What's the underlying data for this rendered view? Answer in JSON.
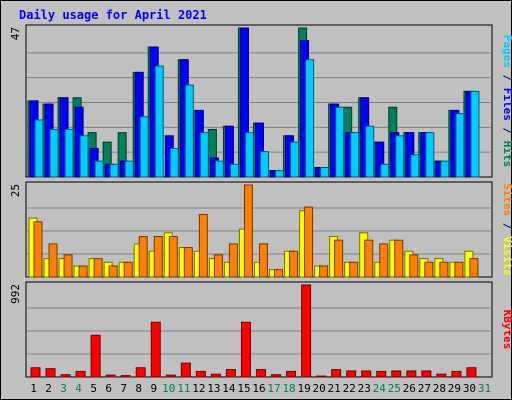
{
  "chart_data": {
    "type": "bar",
    "title": "Daily usage for April 2021",
    "categories": [
      "1",
      "2",
      "3",
      "4",
      "5",
      "6",
      "7",
      "8",
      "9",
      "10",
      "11",
      "12",
      "13",
      "14",
      "15",
      "16",
      "17",
      "18",
      "19",
      "20",
      "21",
      "22",
      "23",
      "24",
      "25",
      "26",
      "27",
      "28",
      "29",
      "30",
      "31"
    ],
    "weekend_days": [
      3,
      4,
      10,
      11,
      17,
      18,
      24,
      25,
      31
    ],
    "panels": [
      {
        "name": "top",
        "ymax_label": "47",
        "ylim": [
          0,
          47
        ],
        "side_labels": [
          {
            "text": "Pages",
            "color": "#00ccff"
          },
          {
            "text": " / ",
            "color": "#000080"
          },
          {
            "text": "Files",
            "color": "#0000ff"
          },
          {
            "text": " / ",
            "color": "#000080"
          },
          {
            "text": "Hits",
            "color": "#00805c"
          }
        ],
        "series": [
          {
            "name": "Hits",
            "color": "#00805c",
            "values": [
              24,
              23,
              25,
              25,
              14,
              11,
              14,
              33,
              41,
              0,
              37,
              21,
              15,
              16,
              47,
              17,
              2,
              13,
              47,
              3,
              23,
              22,
              25,
              11,
              22,
              14,
              14,
              5,
              21,
              27,
              0
            ]
          },
          {
            "name": "Files",
            "color": "#0000ff",
            "values": [
              24,
              23,
              25,
              22,
              9,
              4,
              5,
              33,
              41,
              13,
              37,
              21,
              6,
              16,
              47,
              17,
              2,
              13,
              43,
              3,
              23,
              14,
              25,
              11,
              14,
              14,
              14,
              5,
              21,
              27,
              0
            ]
          },
          {
            "name": "Pages",
            "color": "#00ccff",
            "values": [
              18,
              15,
              15,
              13,
              5,
              4,
              5,
              19,
              35,
              9,
              29,
              14,
              5,
              4,
              14,
              8,
              2,
              11,
              37,
              3,
              22,
              14,
              16,
              4,
              13,
              7,
              14,
              5,
              20,
              27,
              0
            ]
          }
        ]
      },
      {
        "name": "middle",
        "ymax_label": "25",
        "ylim": [
          0,
          25
        ],
        "side_labels": [
          {
            "text": "Sites",
            "color": "#ff8000"
          },
          {
            "text": " / ",
            "color": "#000080"
          },
          {
            "text": "Visits",
            "color": "#ffff00"
          }
        ],
        "series": [
          {
            "name": "Visits",
            "color": "#ffff00",
            "values": [
              16,
              5,
              5,
              3,
              5,
              4,
              4,
              9,
              7,
              12,
              8,
              7,
              5,
              4,
              13,
              4,
              2,
              7,
              18,
              3,
              11,
              4,
              12,
              4,
              10,
              7,
              5,
              5,
              4,
              7,
              0
            ]
          },
          {
            "name": "Sites",
            "color": "#ff8000",
            "values": [
              15,
              9,
              6,
              3,
              5,
              3,
              4,
              11,
              11,
              11,
              8,
              17,
              6,
              9,
              25,
              9,
              2,
              7,
              19,
              3,
              10,
              4,
              10,
              9,
              10,
              6,
              4,
              4,
              4,
              5,
              0
            ]
          }
        ]
      },
      {
        "name": "bottom",
        "ymax_label": "992",
        "ylim": [
          0,
          992
        ],
        "side_labels": [
          {
            "text": "KBytes",
            "color": "#ff0000"
          }
        ],
        "series": [
          {
            "name": "KBytes",
            "color": "#ff0000",
            "values": [
              100,
              90,
              25,
              60,
              450,
              20,
              15,
              100,
              590,
              20,
              150,
              60,
              30,
              80,
              590,
              80,
              25,
              60,
              992,
              10,
              80,
              65,
              65,
              60,
              65,
              65,
              65,
              30,
              60,
              100,
              0
            ]
          }
        ]
      }
    ]
  }
}
